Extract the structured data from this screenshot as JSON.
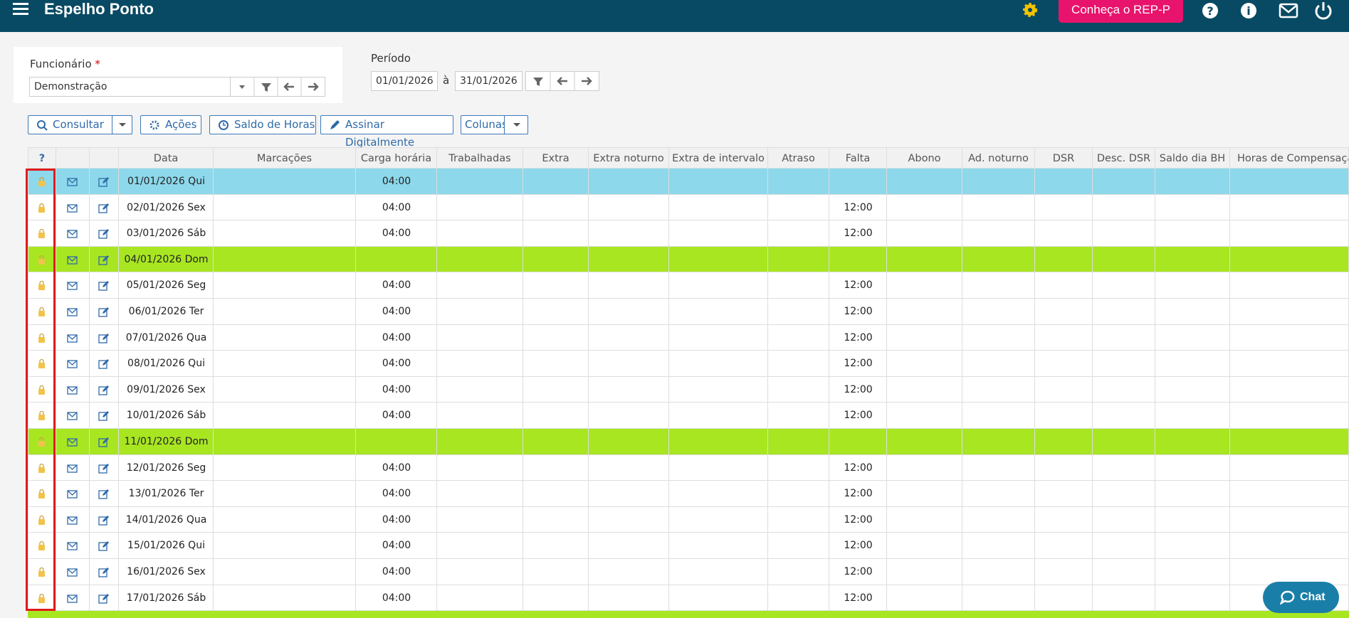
{
  "header": {
    "title": "Espelho Ponto",
    "promo_button": "Conheça o REP-P"
  },
  "filters": {
    "employee_label": "Funcionário",
    "required_mark": "*",
    "employee": "Demonstração",
    "period_label": "Período",
    "period_start": "01/01/2026",
    "period_separator": "à",
    "period_end": "31/01/2026"
  },
  "toolbar": [
    "Consultar",
    "Ações",
    "Saldo de Horas",
    "Assinar Digitalmente",
    "Colunas"
  ],
  "table": {
    "help_header": "?",
    "columns": [
      "Data",
      "Marcações",
      "Carga horária",
      "Trabalhadas",
      "Extra",
      "Extra noturno",
      "Extra de intervalo",
      "Atraso",
      "Falta",
      "Abono",
      "Ad. noturno",
      "DSR",
      "Desc. DSR",
      "Saldo dia BH",
      "Horas de Compensação"
    ],
    "rows": [
      {
        "date": "01/01/2026 Qui",
        "carga_horaria": "04:00",
        "color": "#8dd8eb"
      },
      {
        "date": "02/01/2026 Sex",
        "carga_horaria": "04:00",
        "falta": "12:00"
      },
      {
        "date": "03/01/2026 Sáb",
        "carga_horaria": "04:00",
        "falta": "12:00"
      },
      {
        "date": "04/01/2026 Dom",
        "color": "#a8e622"
      },
      {
        "date": "05/01/2026 Seg",
        "carga_horaria": "04:00",
        "falta": "12:00"
      },
      {
        "date": "06/01/2026 Ter",
        "carga_horaria": "04:00",
        "falta": "12:00"
      },
      {
        "date": "07/01/2026 Qua",
        "carga_horaria": "04:00",
        "falta": "12:00"
      },
      {
        "date": "08/01/2026 Qui",
        "carga_horaria": "04:00",
        "falta": "12:00"
      },
      {
        "date": "09/01/2026 Sex",
        "carga_horaria": "04:00",
        "falta": "12:00"
      },
      {
        "date": "10/01/2026 Sáb",
        "carga_horaria": "04:00",
        "falta": "12:00"
      },
      {
        "date": "11/01/2026 Dom",
        "color": "#a8e622"
      },
      {
        "date": "12/01/2026 Seg",
        "carga_horaria": "04:00",
        "falta": "12:00"
      },
      {
        "date": "13/01/2026 Ter",
        "carga_horaria": "04:00",
        "falta": "12:00"
      },
      {
        "date": "14/01/2026 Qua",
        "carga_horaria": "04:00",
        "falta": "12:00"
      },
      {
        "date": "15/01/2026 Qui",
        "carga_horaria": "04:00",
        "falta": "12:00"
      },
      {
        "date": "16/01/2026 Sex",
        "carga_horaria": "04:00",
        "falta": "12:00"
      },
      {
        "date": "17/01/2026 Sáb",
        "carga_horaria": "04:00",
        "falta": "12:00"
      }
    ]
  },
  "chat": "Chat"
}
